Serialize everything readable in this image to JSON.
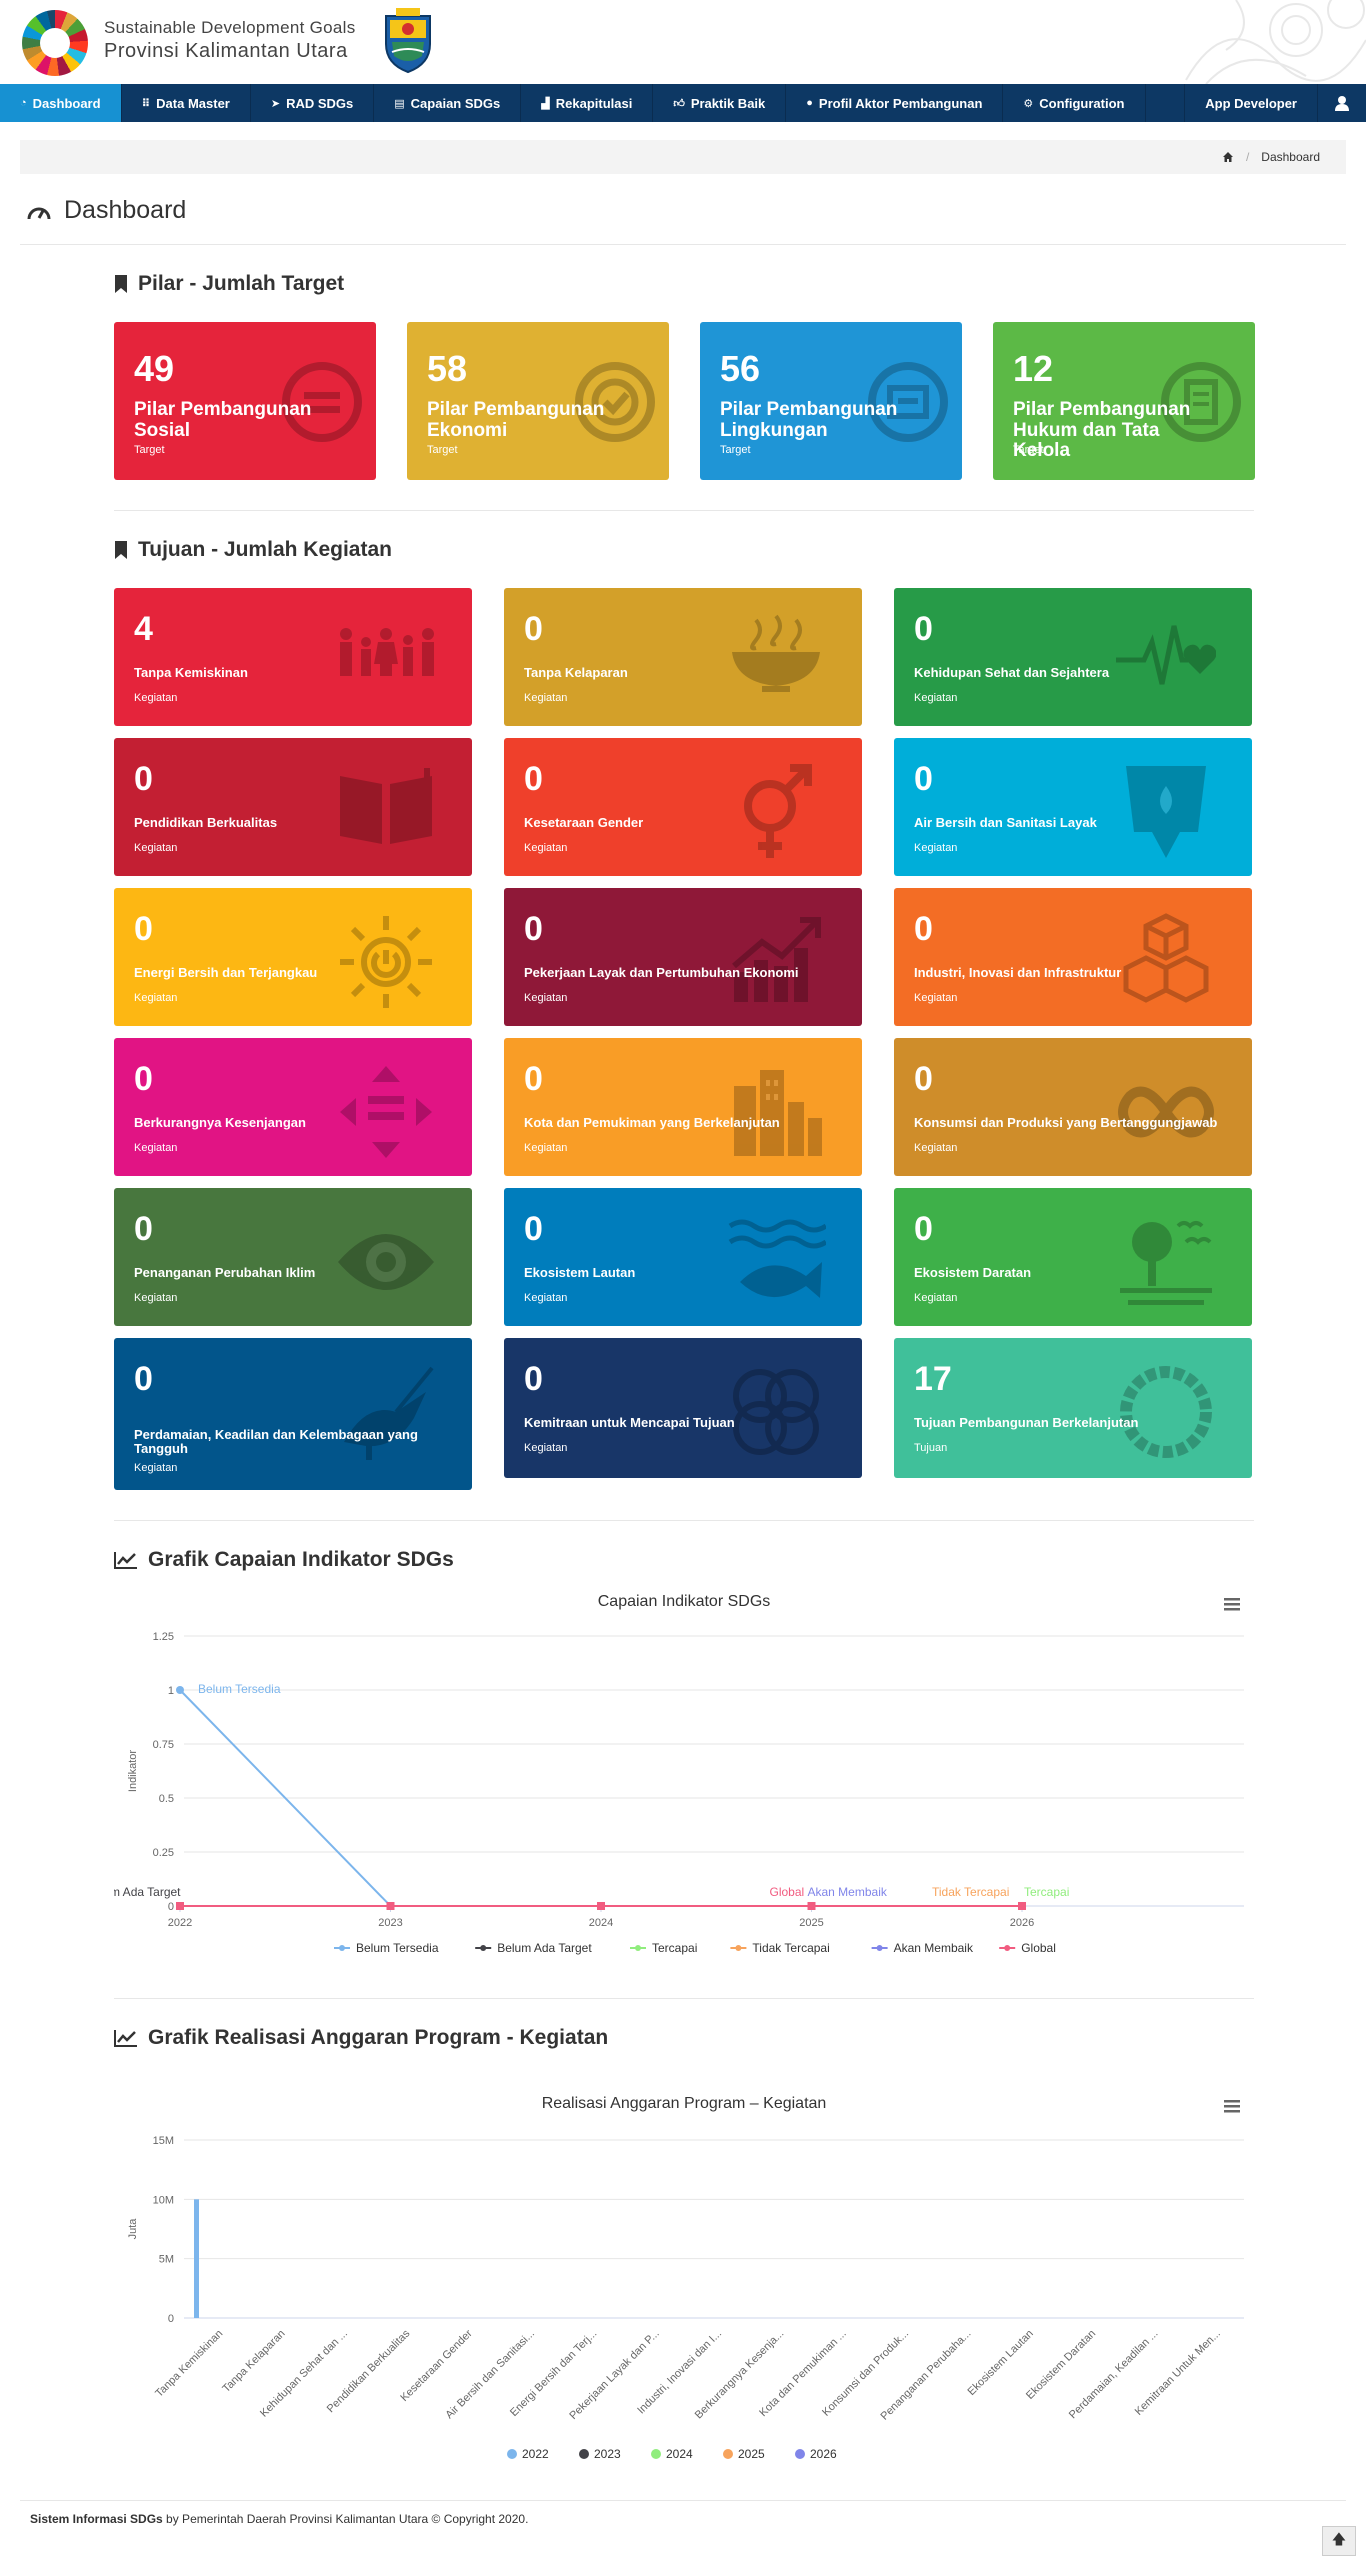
{
  "brand": {
    "line1": "Sustainable Development Goals",
    "line2": "Provinsi Kalimantan Utara"
  },
  "nav": {
    "items": [
      {
        "label": "Dashboard",
        "icon": "gauge-icon",
        "active": true
      },
      {
        "label": "Data Master",
        "icon": "grid-icon"
      },
      {
        "label": "RAD SDGs",
        "icon": "send-icon"
      },
      {
        "label": "Capaian SDGs",
        "icon": "file-icon"
      },
      {
        "label": "Rekapitulasi",
        "icon": "chart-icon"
      },
      {
        "label": "Praktik Baik",
        "icon": "thumbs-up-icon"
      },
      {
        "label": "Profil Aktor Pembangunan",
        "icon": "user-icon"
      },
      {
        "label": "Configuration",
        "icon": "gear-icon"
      }
    ],
    "app_developer": "App Developer"
  },
  "breadcrumb": {
    "current": "Dashboard"
  },
  "page_title": "Dashboard",
  "pilar": {
    "heading": "Pilar - Jumlah Target",
    "cards": [
      {
        "value": "49",
        "label": "Pilar Pembangunan Sosial",
        "sub": "Target",
        "color": "#e5243b"
      },
      {
        "value": "58",
        "label": "Pilar Pembangunan Ekonomi",
        "sub": "Target",
        "color": "#dfb132"
      },
      {
        "value": "56",
        "label": "Pilar Pembangunan Lingkungan",
        "sub": "Target",
        "color": "#1f95d6"
      },
      {
        "value": "12",
        "label": "Pilar Pembangunan Hukum dan Tata Kelola",
        "sub": "Target",
        "color": "#5cb946"
      }
    ]
  },
  "tujuan": {
    "heading": "Tujuan - Jumlah Kegiatan",
    "cards": [
      {
        "value": "4",
        "label": "Tanpa Kemiskinan",
        "sub": "Kegiatan",
        "color": "#e5243b",
        "icon": "family-icon"
      },
      {
        "value": "0",
        "label": "Tanpa Kelaparan",
        "sub": "Kegiatan",
        "color": "#d3a029",
        "icon": "bowl-icon"
      },
      {
        "value": "0",
        "label": "Kehidupan Sehat dan Sejahtera",
        "sub": "Kegiatan",
        "color": "#279b48",
        "icon": "heartbeat-icon"
      },
      {
        "value": "0",
        "label": "Pendidikan Berkualitas",
        "sub": "Kegiatan",
        "color": "#c31f33",
        "icon": "book-icon"
      },
      {
        "value": "0",
        "label": "Kesetaraan Gender",
        "sub": "Kegiatan",
        "color": "#ef402b",
        "icon": "gender-icon"
      },
      {
        "value": "0",
        "label": "Air Bersih dan Sanitasi Layak",
        "sub": "Kegiatan",
        "color": "#00aed9",
        "icon": "water-icon"
      },
      {
        "value": "0",
        "label": "Energi Bersih dan Terjangkau",
        "sub": "Kegiatan",
        "color": "#fdb713",
        "icon": "sun-power-icon"
      },
      {
        "value": "0",
        "label": "Pekerjaan Layak dan Pertumbuhan Ekonomi",
        "sub": "Kegiatan",
        "color": "#8f1838",
        "icon": "growth-chart-icon"
      },
      {
        "value": "0",
        "label": "Industri, Inovasi dan Infrastruktur",
        "sub": "Kegiatan",
        "color": "#f36d25",
        "icon": "cubes-icon"
      },
      {
        "value": "0",
        "label": "Berkurangnya Kesenjangan",
        "sub": "Kegiatan",
        "color": "#e11484",
        "icon": "equality-icon"
      },
      {
        "value": "0",
        "label": "Kota dan Pemukiman yang Berkelanjutan",
        "sub": "Kegiatan",
        "color": "#f99d26",
        "icon": "city-icon"
      },
      {
        "value": "0",
        "label": "Konsumsi dan Produksi yang Bertanggungjawab",
        "sub": "Kegiatan",
        "color": "#cf8d2a",
        "icon": "infinity-icon"
      },
      {
        "value": "0",
        "label": "Penanganan Perubahan Iklim",
        "sub": "Kegiatan",
        "color": "#48773e",
        "icon": "earth-eye-icon"
      },
      {
        "value": "0",
        "label": "Ekosistem Lautan",
        "sub": "Kegiatan",
        "color": "#007dbc",
        "icon": "fish-icon"
      },
      {
        "value": "0",
        "label": "Ekosistem Daratan",
        "sub": "Kegiatan",
        "color": "#3eb049",
        "icon": "tree-icon"
      },
      {
        "value": "0",
        "label": "Perdamaian, Keadilan dan Kelembagaan yang Tangguh",
        "sub": "Kegiatan",
        "color": "#02558b",
        "icon": "dove-icon"
      },
      {
        "value": "0",
        "label": "Kemitraan untuk Mencapai Tujuan",
        "sub": "Kegiatan",
        "color": "#183668",
        "icon": "rings-icon"
      },
      {
        "value": "17",
        "label": "Tujuan Pembangunan Berkelanjutan",
        "sub": "Tujuan",
        "color": "#40c09a",
        "icon": "sdg-wheel-icon"
      }
    ]
  },
  "chart1_section": "Grafik Capaian Indikator SDGs",
  "chart2_section": "Grafik Realisasi Anggaran Program - Kegiatan",
  "chart_data": [
    {
      "type": "line",
      "title": "Capaian Indikator SDGs",
      "xlabel": "",
      "ylabel": "Indikator",
      "x": [
        "2022",
        "2023",
        "2024",
        "2025",
        "2026"
      ],
      "ylim": [
        0,
        1.25
      ],
      "yticks": [
        "0",
        "0.25",
        "0.5",
        "0.75",
        "1",
        "1.25"
      ],
      "series": [
        {
          "name": "Belum Tersedia",
          "color": "#7cb5ec",
          "values": [
            1,
            0,
            null,
            null,
            null
          ]
        },
        {
          "name": "Belum Ada Target",
          "color": "#434348",
          "values": [
            0,
            null,
            null,
            null,
            null
          ]
        },
        {
          "name": "Tercapai",
          "color": "#90ed7d",
          "values": [
            null,
            null,
            null,
            null,
            0
          ]
        },
        {
          "name": "Tidak Tercapai",
          "color": "#f7a35c",
          "values": [
            null,
            null,
            null,
            null,
            0
          ]
        },
        {
          "name": "Akan Membaik",
          "color": "#8085e9",
          "values": [
            null,
            null,
            null,
            0,
            null
          ]
        },
        {
          "name": "Global",
          "color": "#f15c80",
          "values": [
            0,
            0,
            0,
            0,
            0
          ]
        }
      ],
      "annotations": [
        {
          "text": "Belum Tersedia",
          "x": "2022",
          "y": 1,
          "color": "#7cb5ec"
        },
        {
          "text": "Belum Ada Target",
          "x": "2022",
          "y": 0,
          "color": "#434348"
        },
        {
          "text": "Global",
          "x": "2025",
          "y": 0,
          "color": "#f15c80"
        },
        {
          "text": "Akan Membaik",
          "x": "2025",
          "y": 0,
          "color": "#8085e9"
        },
        {
          "text": "Tidak Tercapai",
          "x": "2026",
          "y": 0,
          "color": "#f7a35c"
        },
        {
          "text": "Tercapai",
          "x": "2026",
          "y": 0,
          "color": "#90ed7d"
        }
      ],
      "legend": "bottom"
    },
    {
      "type": "bar",
      "title": "Realisasi Anggaran Program – Kegiatan",
      "ylabel": "Juta",
      "ylim": [
        0,
        15000000
      ],
      "yticks": [
        "0",
        "5M",
        "10M",
        "15M"
      ],
      "categories": [
        "Tanpa Kemiskinan",
        "Tanpa Kelaparan",
        "Kehidupan Sehat dan ...",
        "Pendidikan Berkualitas",
        "Kesetaraan Gender",
        "Air Bersih dan Sanitasi...",
        "Energi Bersih dan Terj...",
        "Pekerjaan Layak dan P...",
        "Industri, Inovasi dan I...",
        "Berkurangnya Kesenja...",
        "Kota dan Pemukiman ...",
        "Konsumsi dan Produk...",
        "Penanganan Perubaha...",
        "Ekosistem Lautan",
        "Ekosistem Daratan",
        "Perdamaian, Keadilan ...",
        "Kemitraan Untuk Men..."
      ],
      "series": [
        {
          "name": "2022",
          "color": "#7cb5ec",
          "values": [
            10000000,
            0,
            0,
            0,
            0,
            0,
            0,
            0,
            0,
            0,
            0,
            0,
            0,
            0,
            0,
            0,
            0
          ]
        },
        {
          "name": "2023",
          "color": "#434348",
          "values": [
            0,
            0,
            0,
            0,
            0,
            0,
            0,
            0,
            0,
            0,
            0,
            0,
            0,
            0,
            0,
            0,
            0
          ]
        },
        {
          "name": "2024",
          "color": "#90ed7d",
          "values": [
            0,
            0,
            0,
            0,
            0,
            0,
            0,
            0,
            0,
            0,
            0,
            0,
            0,
            0,
            0,
            0,
            0
          ]
        },
        {
          "name": "2025",
          "color": "#f7a35c",
          "values": [
            0,
            0,
            0,
            0,
            0,
            0,
            0,
            0,
            0,
            0,
            0,
            0,
            0,
            0,
            0,
            0,
            0
          ]
        },
        {
          "name": "2026",
          "color": "#8085e9",
          "values": [
            0,
            0,
            0,
            0,
            0,
            0,
            0,
            0,
            0,
            0,
            0,
            0,
            0,
            0,
            0,
            0,
            0
          ]
        }
      ],
      "legend": "bottom"
    }
  ],
  "footer": {
    "app": "Sistem Informasi SDGs",
    "rest": " by Pemerintah Daerah Provinsi Kalimantan Utara © Copyright 2020."
  }
}
